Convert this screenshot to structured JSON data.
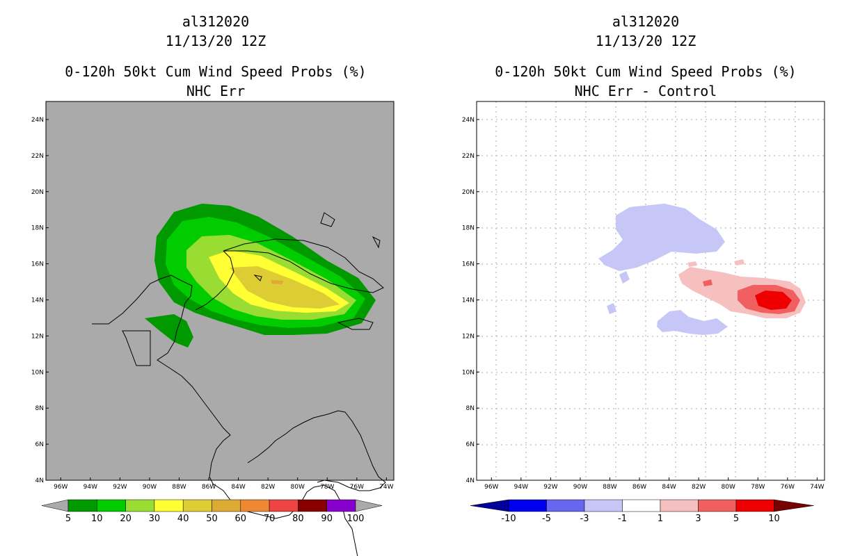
{
  "colors": {
    "gray": "#aaaaaa",
    "prob": [
      "#009900",
      "#00cc00",
      "#99dd33",
      "#ffff33",
      "#ddcc33",
      "#ddaa33",
      "#ee8833",
      "#ee4444",
      "#880000",
      "#8800cc"
    ],
    "diff": [
      "#000099",
      "#0000ee",
      "#6666ee",
      "#c7c7f7",
      "#ffffff",
      "#f7c0c0",
      "#f06060",
      "#ee0000",
      "#770000"
    ]
  },
  "chart_data": [
    {
      "type": "contour-map",
      "title_lines": [
        "al312020",
        "11/13/20 12Z",
        "0-120h 50kt Cum Wind Speed Probs (%)",
        "NHC Err"
      ],
      "x_ticks": [
        "96W",
        "94W",
        "92W",
        "90W",
        "88W",
        "86W",
        "84W",
        "82W",
        "80W",
        "78W",
        "76W",
        "74W"
      ],
      "y_ticks": [
        "24N",
        "22N",
        "20N",
        "18N",
        "16N",
        "14N",
        "12N",
        "10N",
        "8N",
        "6N",
        "4N"
      ],
      "lon_range": [
        -97,
        -73.5
      ],
      "lat_range": [
        4,
        25
      ],
      "colorbar_labels": [
        "5",
        "10",
        "20",
        "30",
        "40",
        "50",
        "60",
        "70",
        "80",
        "90",
        "100"
      ],
      "center": {
        "lon": -80,
        "lat": 15,
        "max_prob": 55
      }
    },
    {
      "type": "contour-map",
      "title_lines": [
        "al312020",
        "11/13/20 12Z",
        "0-120h 50kt Cum Wind Speed Probs (%)",
        "NHC Err - Control"
      ],
      "x_ticks": [
        "96W",
        "94W",
        "92W",
        "90W",
        "88W",
        "86W",
        "84W",
        "82W",
        "80W",
        "78W",
        "76W",
        "74W"
      ],
      "y_ticks": [
        "24N",
        "22N",
        "20N",
        "18N",
        "16N",
        "14N",
        "12N",
        "10N",
        "8N",
        "6N",
        "4N"
      ],
      "lon_range": [
        -97,
        -73.5
      ],
      "lat_range": [
        4,
        25
      ],
      "colorbar_labels": [
        "-10",
        "-5",
        "-3",
        "-1",
        "1",
        "3",
        "5",
        "10"
      ],
      "max_diff": {
        "lon": -77,
        "lat": 14,
        "value": 6
      }
    }
  ]
}
